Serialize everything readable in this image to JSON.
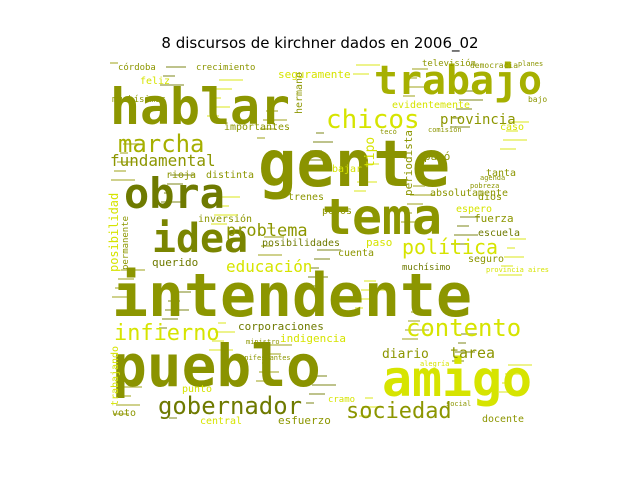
{
  "chart_data": {
    "type": "wordcloud",
    "title": "8 discursos de kirchner dados en 2006_02",
    "colors": {
      "background": "#ffffff",
      "dark_olive": "#6e7a00",
      "olive": "#949a00",
      "yellow": "#d6e400",
      "bright_yellow": "#e4ef10"
    },
    "words": [
      {
        "text": "gente",
        "weight": 100,
        "color": "#8a9300"
      },
      {
        "text": "intendente",
        "weight": 82,
        "color": "#8c9600"
      },
      {
        "text": "pueblo",
        "weight": 72,
        "color": "#8a9300"
      },
      {
        "text": "hablar",
        "weight": 60,
        "color": "#8c9600"
      },
      {
        "text": "tema",
        "weight": 56,
        "color": "#8c9600"
      },
      {
        "text": "amigo",
        "weight": 54,
        "color": "#d6e400"
      },
      {
        "text": "trabajo",
        "weight": 46,
        "color": "#a6b000"
      },
      {
        "text": "obra",
        "weight": 44,
        "color": "#6e7a00"
      },
      {
        "text": "idea",
        "weight": 42,
        "color": "#7a8500"
      },
      {
        "text": "chicos",
        "weight": 30,
        "color": "#d6e400"
      },
      {
        "text": "gobernador",
        "weight": 30,
        "color": "#6e7a00"
      },
      {
        "text": "contento",
        "weight": 28,
        "color": "#d6e400"
      },
      {
        "text": "marcha",
        "weight": 27,
        "color": "#a6b000"
      },
      {
        "text": "infierno",
        "weight": 26,
        "color": "#d6e400"
      },
      {
        "text": "sociedad",
        "weight": 26,
        "color": "#8c9600"
      },
      {
        "text": "política",
        "weight": 24,
        "color": "#d6e400"
      },
      {
        "text": "problema",
        "weight": 22,
        "color": "#8c9600"
      },
      {
        "text": "educación",
        "weight": 20,
        "color": "#d6e400"
      },
      {
        "text": "fundamental",
        "weight": 19,
        "color": "#8c9600"
      },
      {
        "text": "tarea",
        "weight": 17,
        "color": "#8c9600"
      },
      {
        "text": "provincia",
        "weight": 16,
        "color": "#8c9600"
      },
      {
        "text": "diario",
        "weight": 15,
        "color": "#8c9600"
      },
      {
        "text": "esfuerzo",
        "weight": 12,
        "color": "#8c9600"
      },
      {
        "text": "corporaciones",
        "weight": 12,
        "color": "#6e7a00"
      },
      {
        "text": "docente",
        "weight": 11,
        "color": "#8c9600"
      },
      {
        "text": "seguramente",
        "weight": 12,
        "color": "#d6e400"
      },
      {
        "text": "evidentemente",
        "weight": 11,
        "color": "#d6e400"
      },
      {
        "text": "absolutamente",
        "weight": 11,
        "color": "#8c9600"
      },
      {
        "text": "posibilidades",
        "weight": 11,
        "color": "#6e7a00"
      },
      {
        "text": "indigencia",
        "weight": 12,
        "color": "#d6e400"
      },
      {
        "text": "posibilidad",
        "weight": 11,
        "color": "#d6e400"
      },
      {
        "text": "trabajando",
        "weight": 10,
        "color": "#d6e400"
      },
      {
        "text": "importantes",
        "weight": 11,
        "color": "#8c9600"
      },
      {
        "text": "crecimiento",
        "weight": 10,
        "color": "#8c9600"
      },
      {
        "text": "televisión",
        "weight": 10,
        "color": "#8c9600"
      },
      {
        "text": "córdoba",
        "weight": 10,
        "color": "#8c9600"
      },
      {
        "text": "feliz",
        "weight": 10,
        "color": "#d6e400"
      },
      {
        "text": "muchísimas",
        "weight": 9,
        "color": "#8c9600"
      },
      {
        "text": "muchísimo",
        "weight": 9,
        "color": "#6e7a00"
      },
      {
        "text": "inversión",
        "weight": 10,
        "color": "#8c9600"
      },
      {
        "text": "distinta",
        "weight": 10,
        "color": "#8c9600"
      },
      {
        "text": "rioja",
        "weight": 10,
        "color": "#8c9600"
      },
      {
        "text": "querido",
        "weight": 11,
        "color": "#6e7a00"
      },
      {
        "text": "cuenta",
        "weight": 10,
        "color": "#8c9600"
      },
      {
        "text": "trenes",
        "weight": 10,
        "color": "#8c9600"
      },
      {
        "text": "pesos",
        "weight": 10,
        "color": "#8c9600"
      },
      {
        "text": "paso",
        "weight": 11,
        "color": "#d6e400"
      },
      {
        "text": "pasó",
        "weight": 11,
        "color": "#8c9600"
      },
      {
        "text": "fuerza",
        "weight": 11,
        "color": "#8c9600"
      },
      {
        "text": "escuela",
        "weight": 10,
        "color": "#6e7a00"
      },
      {
        "text": "seguro",
        "weight": 10,
        "color": "#8c9600"
      },
      {
        "text": "espero",
        "weight": 10,
        "color": "#d6e400"
      },
      {
        "text": "tanta",
        "weight": 10,
        "color": "#8c9600"
      },
      {
        "text": "dios",
        "weight": 10,
        "color": "#8c9600"
      },
      {
        "text": "bajar",
        "weight": 10,
        "color": "#d6e400"
      },
      {
        "text": "tipo",
        "weight": 12,
        "color": "#d6e400"
      },
      {
        "text": "periodista",
        "weight": 11,
        "color": "#8c9600"
      },
      {
        "text": "hermano",
        "weight": 10,
        "color": "#8c9600"
      },
      {
        "text": "punto",
        "weight": 10,
        "color": "#d6e400"
      },
      {
        "text": "central",
        "weight": 10,
        "color": "#d6e400"
      },
      {
        "text": "cramo",
        "weight": 9,
        "color": "#d6e400"
      },
      {
        "text": "voto",
        "weight": 10,
        "color": "#8c9600"
      },
      {
        "text": "caso",
        "weight": 10,
        "color": "#d6e400"
      },
      {
        "text": "democracia",
        "weight": 8,
        "color": "#8c9600"
      },
      {
        "text": "bajo",
        "weight": 8,
        "color": "#8c9600"
      },
      {
        "text": "planes",
        "weight": 7,
        "color": "#8c9600"
      },
      {
        "text": "permanente",
        "weight": 9,
        "color": "#8c9600"
      },
      {
        "text": "provincia aires",
        "weight": 7,
        "color": "#d6e400"
      },
      {
        "text": "manifestantes",
        "weight": 7,
        "color": "#8c9600"
      },
      {
        "text": "alegría",
        "weight": 7,
        "color": "#d6e400"
      },
      {
        "text": "pobreza",
        "weight": 7,
        "color": "#8c9600"
      },
      {
        "text": "agenda",
        "weight": 7,
        "color": "#8c9600"
      },
      {
        "text": "comisión",
        "weight": 7,
        "color": "#8c9600"
      },
      {
        "text": "tecó",
        "weight": 7,
        "color": "#8c9600"
      },
      {
        "text": "ministro",
        "weight": 7,
        "color": "#8c9600"
      },
      {
        "text": "social",
        "weight": 7,
        "color": "#8c9600"
      }
    ]
  }
}
